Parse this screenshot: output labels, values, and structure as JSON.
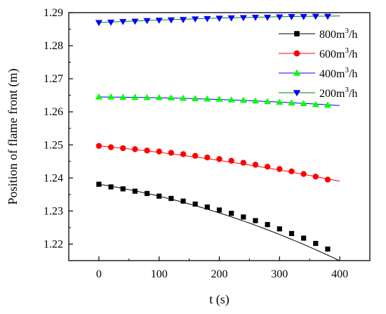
{
  "chart_data": {
    "type": "line",
    "title": "",
    "xlabel": "t (s)",
    "ylabel": "Position of flame front (m)",
    "xlim": [
      -50,
      450
    ],
    "ylim": [
      1.215,
      1.29
    ],
    "xticks": [
      0,
      100,
      200,
      300,
      400
    ],
    "yticks": [
      1.22,
      1.23,
      1.24,
      1.25,
      1.26,
      1.27,
      1.28,
      1.29
    ],
    "x_tick_labels": [
      "0",
      "100",
      "200",
      "300",
      "400"
    ],
    "y_tick_labels": [
      "1.22",
      "1.23",
      "1.24",
      "1.25",
      "1.26",
      "1.27",
      "1.28",
      "1.29"
    ],
    "grid": false,
    "legend_position": "top-right",
    "x": [
      0,
      20,
      40,
      60,
      80,
      100,
      120,
      140,
      160,
      180,
      200,
      220,
      240,
      260,
      280,
      300,
      320,
      340,
      360,
      380
    ],
    "series": [
      {
        "name": "800m³/h",
        "name_base": "800m",
        "name_sup": "3",
        "name_tail": "/h",
        "marker": "square",
        "marker_color": "#000000",
        "line_color": "#000000",
        "values": [
          1.2381,
          1.2373,
          1.2367,
          1.236,
          1.2353,
          1.2345,
          1.2338,
          1.233,
          1.2321,
          1.2312,
          1.2303,
          1.2293,
          1.2282,
          1.2271,
          1.2259,
          1.2246,
          1.2232,
          1.2218,
          1.2202,
          1.2185
        ],
        "fit_x": [
          0,
          400
        ],
        "fit": {
          "a": 1.2381,
          "b": -2.89e-05,
          "c": -7.25e-08
        }
      },
      {
        "name": "600m³/h",
        "name_base": "600m",
        "name_sup": "3",
        "name_tail": "/h",
        "marker": "circle",
        "marker_color": "#ff0000",
        "line_color": "#ff0000",
        "values": [
          1.2497,
          1.2493,
          1.249,
          1.2487,
          1.2483,
          1.248,
          1.2476,
          1.2472,
          1.2467,
          1.2462,
          1.2457,
          1.2452,
          1.2446,
          1.244,
          1.2434,
          1.2427,
          1.242,
          1.2412,
          1.2404,
          1.2395
        ],
        "fit_x": [
          0,
          400
        ],
        "fit": {
          "a": 1.2497,
          "b": -1.72e-05,
          "c": -2.38e-08
        }
      },
      {
        "name": "400m³/h",
        "name_base": "400m",
        "name_sup": "3",
        "name_tail": "/h",
        "marker": "triangle-up",
        "marker_color": "#00ff00",
        "line_color": "#0000ff",
        "values": [
          1.2645,
          1.2645,
          1.2644,
          1.2644,
          1.2643,
          1.2643,
          1.2642,
          1.2641,
          1.264,
          1.2639,
          1.2638,
          1.2636,
          1.2635,
          1.2633,
          1.2631,
          1.2629,
          1.2627,
          1.2625,
          1.2622,
          1.262
        ],
        "fit_x": [
          0,
          400
        ],
        "fit": {
          "a": 1.2645,
          "b": -1.2e-06,
          "c": -1.33e-08
        }
      },
      {
        "name": "200m³/h",
        "name_base": "200m",
        "name_sup": "3",
        "name_tail": "/h",
        "marker": "triangle-down",
        "marker_color": "#0000ff",
        "line_color": "#008000",
        "values": [
          1.287,
          1.2871,
          1.2873,
          1.2874,
          1.2876,
          1.2877,
          1.2878,
          1.2879,
          1.2881,
          1.2882,
          1.2883,
          1.2884,
          1.2885,
          1.2886,
          1.2886,
          1.2887,
          1.2888,
          1.2888,
          1.2889,
          1.2889
        ],
        "fit_x": [
          0,
          400
        ],
        "fit": {
          "a": 1.287,
          "b": 8.5e-06,
          "c": -8.8e-09
        }
      }
    ]
  }
}
